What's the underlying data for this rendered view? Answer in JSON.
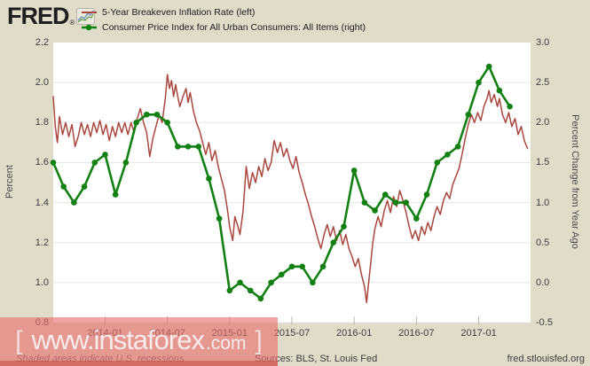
{
  "header": {
    "logo_text": "FRED",
    "logo_registered": "®",
    "legend": [
      {
        "label": "5-Year Breakeven Inflation Rate (left)",
        "color": "#a9473f",
        "marker": "line"
      },
      {
        "label": "Consumer Price Index for All Urban Consumers: All Items (right)",
        "color": "#128012",
        "marker": "line-dot"
      }
    ]
  },
  "watermark": {
    "bracket_left": "[",
    "text_main": "www.instaforex",
    "text_suffix": ".com",
    "bracket_right": "]"
  },
  "footer": {
    "note": "Shaded areas indicate U.S. recessions",
    "sources": "Sources: BLS, St. Louis Fed",
    "site": "fred.stlouisfed.org"
  },
  "chart_data": {
    "type": "line",
    "title": "",
    "grid": true,
    "background": "#ffffff",
    "x_axis": {
      "start": "2013-08",
      "months_shown": 46,
      "tick_labels": [
        "2014-01",
        "2014-07",
        "2015-01",
        "2015-07",
        "2016-01",
        "2016-07",
        "2017-01"
      ],
      "tick_month_offsets": [
        5,
        11,
        17,
        23,
        29,
        35,
        41
      ]
    },
    "left_axis": {
      "title": "Percent",
      "min": 0.8,
      "max": 2.2,
      "ticks": [
        "2.2",
        "2.0",
        "1.8",
        "1.6",
        "1.4",
        "1.2",
        "1.0",
        "0.8"
      ]
    },
    "right_axis": {
      "title": "Percent Change from Year Ago",
      "min": -0.5,
      "max": 3.0,
      "ticks": [
        "3.0",
        "2.5",
        "2.0",
        "1.5",
        "1.0",
        "0.5",
        "0.0",
        "-0.5"
      ]
    },
    "series": [
      {
        "name": "5-Year Breakeven Inflation Rate",
        "axis": "left",
        "color": "#a9473f",
        "style": "line",
        "points": [
          [
            0,
            1.93
          ],
          [
            0.2,
            1.78
          ],
          [
            0.4,
            1.7
          ],
          [
            0.6,
            1.83
          ],
          [
            0.9,
            1.74
          ],
          [
            1.2,
            1.8
          ],
          [
            1.5,
            1.73
          ],
          [
            1.8,
            1.79
          ],
          [
            2.1,
            1.68
          ],
          [
            2.4,
            1.73
          ],
          [
            2.7,
            1.8
          ],
          [
            3,
            1.74
          ],
          [
            3.3,
            1.79
          ],
          [
            3.6,
            1.73
          ],
          [
            3.9,
            1.8
          ],
          [
            4.2,
            1.75
          ],
          [
            4.5,
            1.81
          ],
          [
            4.8,
            1.74
          ],
          [
            5.1,
            1.79
          ],
          [
            5.4,
            1.71
          ],
          [
            5.7,
            1.78
          ],
          [
            6,
            1.73
          ],
          [
            6.3,
            1.8
          ],
          [
            6.6,
            1.75
          ],
          [
            6.9,
            1.8
          ],
          [
            7.2,
            1.74
          ],
          [
            7.5,
            1.8
          ],
          [
            7.8,
            1.75
          ],
          [
            8.1,
            1.82
          ],
          [
            8.4,
            1.87
          ],
          [
            8.7,
            1.8
          ],
          [
            9,
            1.75
          ],
          [
            9.3,
            1.63
          ],
          [
            9.6,
            1.72
          ],
          [
            9.9,
            1.78
          ],
          [
            10.2,
            1.84
          ],
          [
            10.5,
            1.8
          ],
          [
            10.8,
            1.92
          ],
          [
            11,
            2.04
          ],
          [
            11.2,
            1.97
          ],
          [
            11.4,
            2.01
          ],
          [
            11.6,
            1.93
          ],
          [
            11.8,
            1.99
          ],
          [
            12,
            1.93
          ],
          [
            12.2,
            1.88
          ],
          [
            12.5,
            1.93
          ],
          [
            12.8,
            1.97
          ],
          [
            13,
            1.9
          ],
          [
            13.2,
            1.95
          ],
          [
            13.5,
            1.86
          ],
          [
            13.8,
            1.8
          ],
          [
            14.1,
            1.76
          ],
          [
            14.4,
            1.7
          ],
          [
            14.7,
            1.64
          ],
          [
            15,
            1.7
          ],
          [
            15.3,
            1.61
          ],
          [
            15.6,
            1.66
          ],
          [
            15.9,
            1.58
          ],
          [
            16.2,
            1.52
          ],
          [
            16.5,
            1.46
          ],
          [
            16.8,
            1.36
          ],
          [
            17,
            1.28
          ],
          [
            17.3,
            1.21
          ],
          [
            17.5,
            1.33
          ],
          [
            17.8,
            1.28
          ],
          [
            18,
            1.24
          ],
          [
            18.3,
            1.36
          ],
          [
            18.6,
            1.58
          ],
          [
            18.9,
            1.47
          ],
          [
            19.2,
            1.55
          ],
          [
            19.5,
            1.5
          ],
          [
            19.8,
            1.58
          ],
          [
            20.1,
            1.53
          ],
          [
            20.4,
            1.62
          ],
          [
            20.7,
            1.56
          ],
          [
            21,
            1.6
          ],
          [
            21.3,
            1.71
          ],
          [
            21.6,
            1.65
          ],
          [
            21.9,
            1.7
          ],
          [
            22.2,
            1.63
          ],
          [
            22.5,
            1.67
          ],
          [
            22.8,
            1.61
          ],
          [
            23.1,
            1.57
          ],
          [
            23.4,
            1.63
          ],
          [
            23.7,
            1.55
          ],
          [
            24,
            1.5
          ],
          [
            24.3,
            1.44
          ],
          [
            24.6,
            1.39
          ],
          [
            24.9,
            1.33
          ],
          [
            25.2,
            1.28
          ],
          [
            25.5,
            1.22
          ],
          [
            25.8,
            1.17
          ],
          [
            26.1,
            1.24
          ],
          [
            26.4,
            1.29
          ],
          [
            26.7,
            1.23
          ],
          [
            27,
            1.28
          ],
          [
            27.3,
            1.21
          ],
          [
            27.6,
            1.26
          ],
          [
            27.9,
            1.19
          ],
          [
            28.2,
            1.24
          ],
          [
            28.5,
            1.17
          ],
          [
            28.8,
            1.13
          ],
          [
            29.1,
            1.08
          ],
          [
            29.4,
            1.12
          ],
          [
            29.7,
            1.04
          ],
          [
            30,
            0.98
          ],
          [
            30.2,
            0.9
          ],
          [
            30.4,
            1
          ],
          [
            30.6,
            1.1
          ],
          [
            30.8,
            1.2
          ],
          [
            31,
            1.27
          ],
          [
            31.3,
            1.33
          ],
          [
            31.6,
            1.28
          ],
          [
            31.9,
            1.36
          ],
          [
            32.2,
            1.41
          ],
          [
            32.5,
            1.35
          ],
          [
            32.8,
            1.43
          ],
          [
            33.1,
            1.38
          ],
          [
            33.4,
            1.46
          ],
          [
            33.7,
            1.41
          ],
          [
            34,
            1.35
          ],
          [
            34.3,
            1.28
          ],
          [
            34.6,
            1.22
          ],
          [
            34.9,
            1.26
          ],
          [
            35.2,
            1.21
          ],
          [
            35.5,
            1.28
          ],
          [
            35.8,
            1.24
          ],
          [
            36.1,
            1.3
          ],
          [
            36.4,
            1.26
          ],
          [
            36.7,
            1.33
          ],
          [
            37,
            1.38
          ],
          [
            37.3,
            1.34
          ],
          [
            37.6,
            1.41
          ],
          [
            37.9,
            1.45
          ],
          [
            38.2,
            1.42
          ],
          [
            38.5,
            1.49
          ],
          [
            38.8,
            1.53
          ],
          [
            39.1,
            1.57
          ],
          [
            39.4,
            1.64
          ],
          [
            39.7,
            1.72
          ],
          [
            40,
            1.79
          ],
          [
            40.3,
            1.84
          ],
          [
            40.6,
            1.8
          ],
          [
            40.9,
            1.85
          ],
          [
            41.2,
            1.81
          ],
          [
            41.5,
            1.88
          ],
          [
            41.8,
            1.92
          ],
          [
            42,
            1.96
          ],
          [
            42.2,
            1.9
          ],
          [
            42.5,
            1.94
          ],
          [
            42.8,
            1.88
          ],
          [
            43,
            1.92
          ],
          [
            43.3,
            1.84
          ],
          [
            43.6,
            1.8
          ],
          [
            43.9,
            1.85
          ],
          [
            44.2,
            1.78
          ],
          [
            44.5,
            1.82
          ],
          [
            44.8,
            1.74
          ],
          [
            45.1,
            1.78
          ],
          [
            45.4,
            1.71
          ],
          [
            45.7,
            1.67
          ]
        ]
      },
      {
        "name": "Consumer Price Index for All Urban Consumers: All Items",
        "axis": "right",
        "color": "#128012",
        "style": "line-markers",
        "start_month_offset": 0,
        "monthly_values": [
          1.5,
          1.2,
          1.0,
          1.2,
          1.5,
          1.6,
          1.1,
          1.5,
          2.0,
          2.1,
          2.1,
          2.0,
          1.7,
          1.7,
          1.7,
          1.3,
          0.8,
          -0.1,
          0.0,
          -0.1,
          -0.2,
          0.0,
          0.1,
          0.2,
          0.2,
          0.0,
          0.2,
          0.5,
          0.7,
          1.4,
          1.0,
          0.9,
          1.1,
          1.0,
          1.0,
          0.8,
          1.1,
          1.5,
          1.6,
          1.7,
          2.1,
          2.5,
          2.7,
          2.4,
          2.2
        ]
      }
    ]
  }
}
